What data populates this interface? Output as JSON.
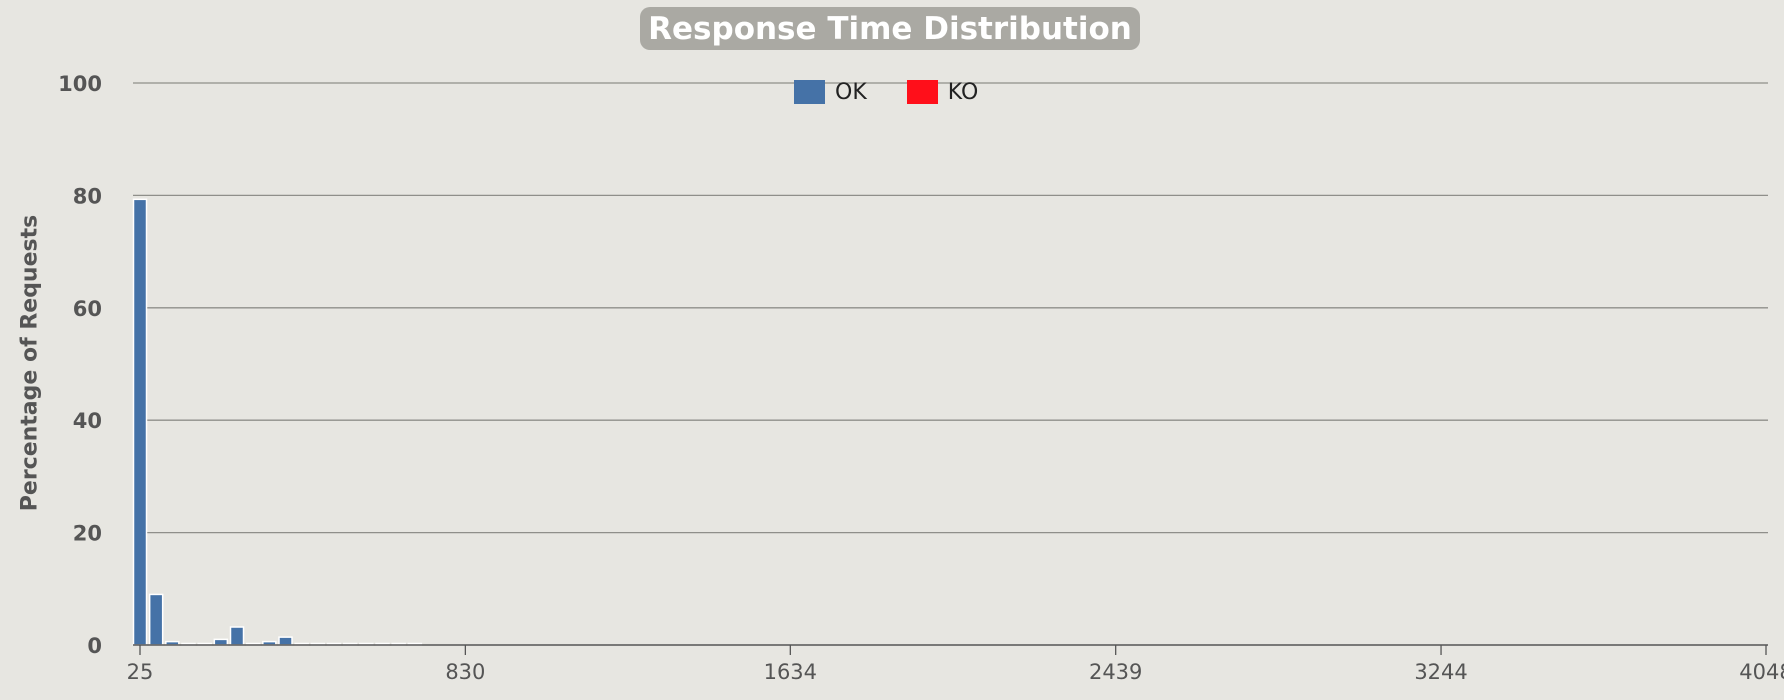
{
  "chart_data": {
    "type": "bar",
    "title": "Response Time Distribution",
    "xlabel": "",
    "ylabel": "Percentage of Requests",
    "ylim": [
      0,
      100
    ],
    "xlim": [
      25,
      4048
    ],
    "yticks": [
      0,
      20,
      40,
      60,
      80,
      100
    ],
    "xticks": [
      25,
      830,
      1634,
      2439,
      3244,
      4048
    ],
    "grid": true,
    "legend_position": "top-center",
    "legend": [
      "OK",
      "KO"
    ],
    "series": [
      {
        "name": "OK",
        "color": "#4572a7",
        "points": [
          {
            "x": 25,
            "y": 79.3
          },
          {
            "x": 65,
            "y": 9.0
          },
          {
            "x": 105,
            "y": 0.6
          },
          {
            "x": 145,
            "y": 0.2
          },
          {
            "x": 185,
            "y": 0.2
          },
          {
            "x": 225,
            "y": 1.0
          },
          {
            "x": 265,
            "y": 3.2
          },
          {
            "x": 305,
            "y": 0.1
          },
          {
            "x": 345,
            "y": 0.6
          },
          {
            "x": 385,
            "y": 1.4
          },
          {
            "x": 425,
            "y": 0.1
          },
          {
            "x": 465,
            "y": 0.1
          },
          {
            "x": 505,
            "y": 0.1
          },
          {
            "x": 545,
            "y": 0.1
          },
          {
            "x": 585,
            "y": 0.1
          },
          {
            "x": 625,
            "y": 0.1
          },
          {
            "x": 665,
            "y": 0.1
          },
          {
            "x": 705,
            "y": 0.1
          }
        ]
      },
      {
        "name": "KO",
        "color": "#ff0f1a",
        "points": []
      }
    ]
  }
}
